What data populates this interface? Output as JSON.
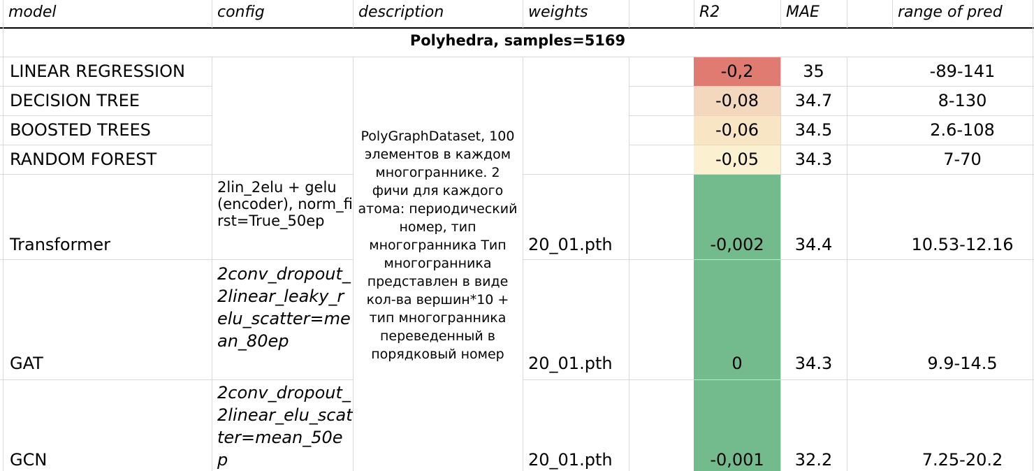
{
  "headers": {
    "model": "model",
    "config": "config",
    "description": "description",
    "weights": "weights",
    "r2": "R2",
    "mae": "MAE",
    "range": "range of pred"
  },
  "section_title": "Polyhedra, samples=5169",
  "description_text": "PolyGraphDataset, 100 элементов в каждом многограннике. 2 фичи для каждого атома: периодический номер, тип многогранника Тип многогранника представлен в виде кол-ва вершин*10 + тип многогранника переведенный в порядковый номер",
  "rows": [
    {
      "model": "LINEAR REGRESSION",
      "config": "",
      "weights": "",
      "r2": "-0,2",
      "mae": "35",
      "range": "-89-141",
      "r2_color": "#e07b72"
    },
    {
      "model": "DECISION TREE",
      "config": "",
      "weights": "",
      "r2": "-0,08",
      "mae": "34.7",
      "range": "8-130",
      "r2_color": "#f3d8bd"
    },
    {
      "model": "BOOSTED TREES",
      "config": "",
      "weights": "",
      "r2": "-0,06",
      "mae": "34.5",
      "range": "2.6-108",
      "r2_color": "#f8e5c4"
    },
    {
      "model": "RANDOM FOREST",
      "config": "",
      "weights": "",
      "r2": "-0,05",
      "mae": "34.3",
      "range": "7-70",
      "r2_color": "#fbf0cf"
    },
    {
      "model": "Transformer",
      "config": "2lin_2elu + gelu (encoder), norm_first=True_50ep",
      "weights": "20_01.pth",
      "r2": "-0,002",
      "mae": "34.4",
      "range": "10.53-12.16",
      "r2_color": "#73bb8c"
    },
    {
      "model": "GAT",
      "config": "2conv_dropout_2linear_leaky_relu_scatter=mean_80ep",
      "weights": "20_01.pth",
      "r2": "0",
      "mae": "34.3",
      "range": "9.9-14.5",
      "r2_color": "#73bb8c"
    },
    {
      "model": "GCN",
      "config": "2conv_dropout_2linear_elu_scatter=mean_50ep",
      "weights": "20_01.pth",
      "r2": "-0,001",
      "mae": "32.2",
      "range": "7.25-20.2",
      "r2_color": "#73bb8c"
    }
  ]
}
